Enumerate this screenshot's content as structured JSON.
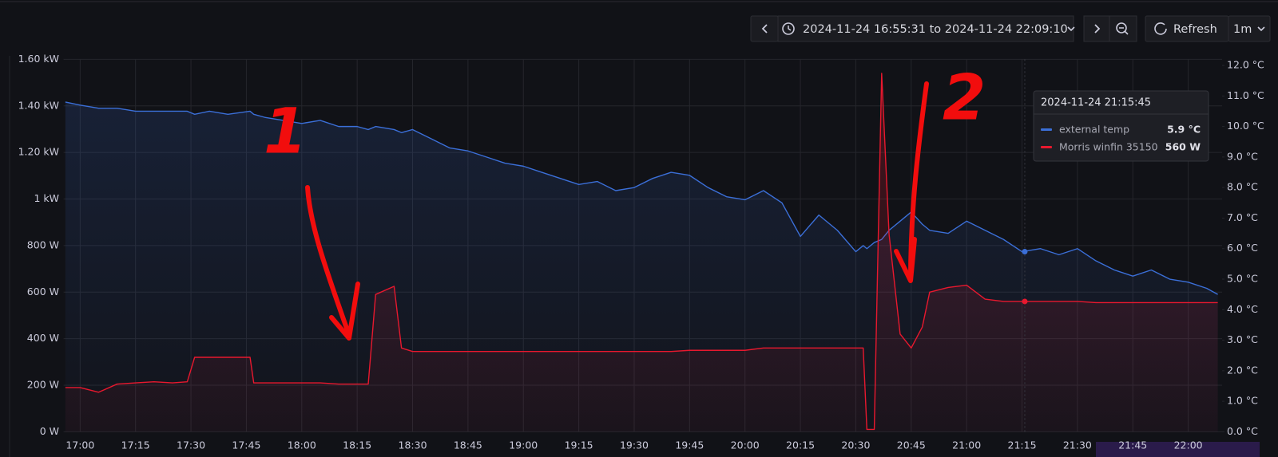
{
  "toolbar": {
    "time_range": "2024-11-24 16:55:31 to 2024-11-24 22:09:10",
    "refresh": "Refresh",
    "interval": "1m"
  },
  "tooltip": {
    "time": "2024-11-24 21:15:45",
    "rows": [
      {
        "name": "external temp",
        "value": "5.9 °C"
      },
      {
        "name": "Morris winfin 35150",
        "value": "560 W"
      }
    ]
  },
  "chart_data": {
    "type": "line",
    "annotations": [
      "1",
      "2"
    ],
    "xlim": [
      "16:55:31",
      "22:09:10"
    ],
    "xticks": [
      "17:00",
      "17:15",
      "17:30",
      "17:45",
      "18:00",
      "18:15",
      "18:30",
      "18:45",
      "19:00",
      "19:15",
      "19:30",
      "19:45",
      "20:00",
      "20:15",
      "20:30",
      "20:45",
      "21:00",
      "21:15",
      "21:30",
      "21:45",
      "22:00"
    ],
    "ylim": [
      0,
      1600
    ],
    "yticks": [
      {
        "value": 0,
        "label": "0 W"
      },
      {
        "value": 200,
        "label": "200 W"
      },
      {
        "value": 400,
        "label": "400 W"
      },
      {
        "value": 600,
        "label": "600 W"
      },
      {
        "value": 800,
        "label": "800 W"
      },
      {
        "value": 1000,
        "label": "1 kW"
      },
      {
        "value": 1200,
        "label": "1.20 kW"
      },
      {
        "value": 1400,
        "label": "1.40 kW"
      },
      {
        "value": 1600,
        "label": "1.60 kW"
      }
    ],
    "y2lim": [
      0,
      12.2
    ],
    "y2ticks": [
      {
        "value": 0,
        "label": "0.0 °C"
      },
      {
        "value": 1,
        "label": "1.0 °C"
      },
      {
        "value": 2,
        "label": "2.0 °C"
      },
      {
        "value": 3,
        "label": "3.0 °C"
      },
      {
        "value": 4,
        "label": "4.0 °C"
      },
      {
        "value": 5,
        "label": "5.0 °C"
      },
      {
        "value": 6,
        "label": "6.0 °C"
      },
      {
        "value": 7,
        "label": "7.0 °C"
      },
      {
        "value": 8,
        "label": "8.0 °C"
      },
      {
        "value": 9,
        "label": "9.0 °C"
      },
      {
        "value": 10,
        "label": "10.0 °C"
      },
      {
        "value": 11,
        "label": "11.0 °C"
      },
      {
        "value": 12,
        "label": "12.0 °C"
      }
    ],
    "grid": true,
    "x": [
      "16:56",
      "17:00",
      "17:05",
      "17:10",
      "17:15",
      "17:20",
      "17:25",
      "17:29",
      "17:31",
      "17:35",
      "17:40",
      "17:46",
      "17:47",
      "17:50",
      "17:55",
      "18:00",
      "18:05",
      "18:10",
      "18:15",
      "18:18",
      "18:20",
      "18:25",
      "18:27",
      "18:30",
      "18:35",
      "18:40",
      "18:45",
      "18:50",
      "18:55",
      "19:00",
      "19:05",
      "19:10",
      "19:15",
      "19:20",
      "19:25",
      "19:30",
      "19:35",
      "19:40",
      "19:45",
      "19:50",
      "19:55",
      "20:00",
      "20:05",
      "20:10",
      "20:15",
      "20:20",
      "20:25",
      "20:30",
      "20:32",
      "20:33",
      "20:35",
      "20:37",
      "20:39",
      "20:42",
      "20:45",
      "20:48",
      "20:50",
      "20:55",
      "21:00",
      "21:05",
      "21:10",
      "21:15",
      "21:20",
      "21:25",
      "21:30",
      "21:35",
      "21:40",
      "21:45",
      "21:50",
      "21:55",
      "22:00",
      "22:05",
      "22:08"
    ],
    "series": [
      {
        "name": "external temp",
        "color": "#3b6fd8",
        "axis": "y2",
        "values": [
          10.8,
          10.7,
          10.6,
          10.6,
          10.5,
          10.5,
          10.5,
          10.5,
          10.4,
          10.5,
          10.4,
          10.5,
          10.4,
          10.3,
          10.2,
          10.1,
          10.2,
          10.0,
          10.0,
          9.9,
          10.0,
          9.9,
          9.8,
          9.9,
          9.6,
          9.3,
          9.2,
          9.0,
          8.8,
          8.7,
          8.5,
          8.3,
          8.1,
          8.2,
          7.9,
          8.0,
          8.3,
          8.5,
          8.4,
          8.0,
          7.7,
          7.6,
          7.9,
          7.5,
          6.4,
          7.1,
          6.6,
          5.9,
          6.1,
          6.0,
          6.2,
          6.3,
          6.6,
          6.9,
          7.2,
          6.8,
          6.6,
          6.5,
          6.9,
          6.6,
          6.3,
          5.9,
          6.0,
          5.8,
          6.0,
          5.6,
          5.3,
          5.1,
          5.3,
          5.0,
          4.9,
          4.7,
          4.5
        ]
      },
      {
        "name": "Morris winfin 35150",
        "color": "#e8182e",
        "values": [
          190,
          190,
          170,
          205,
          210,
          215,
          210,
          215,
          320,
          320,
          320,
          320,
          210,
          210,
          210,
          210,
          210,
          205,
          205,
          205,
          590,
          625,
          360,
          345,
          345,
          345,
          345,
          345,
          345,
          345,
          345,
          345,
          345,
          345,
          345,
          345,
          345,
          345,
          350,
          350,
          350,
          350,
          360,
          360,
          360,
          360,
          360,
          360,
          360,
          10,
          10,
          1540,
          850,
          420,
          360,
          450,
          600,
          620,
          630,
          570,
          560,
          560,
          560,
          560,
          560,
          555,
          555,
          555,
          555,
          555,
          555,
          555,
          555
        ]
      }
    ]
  }
}
